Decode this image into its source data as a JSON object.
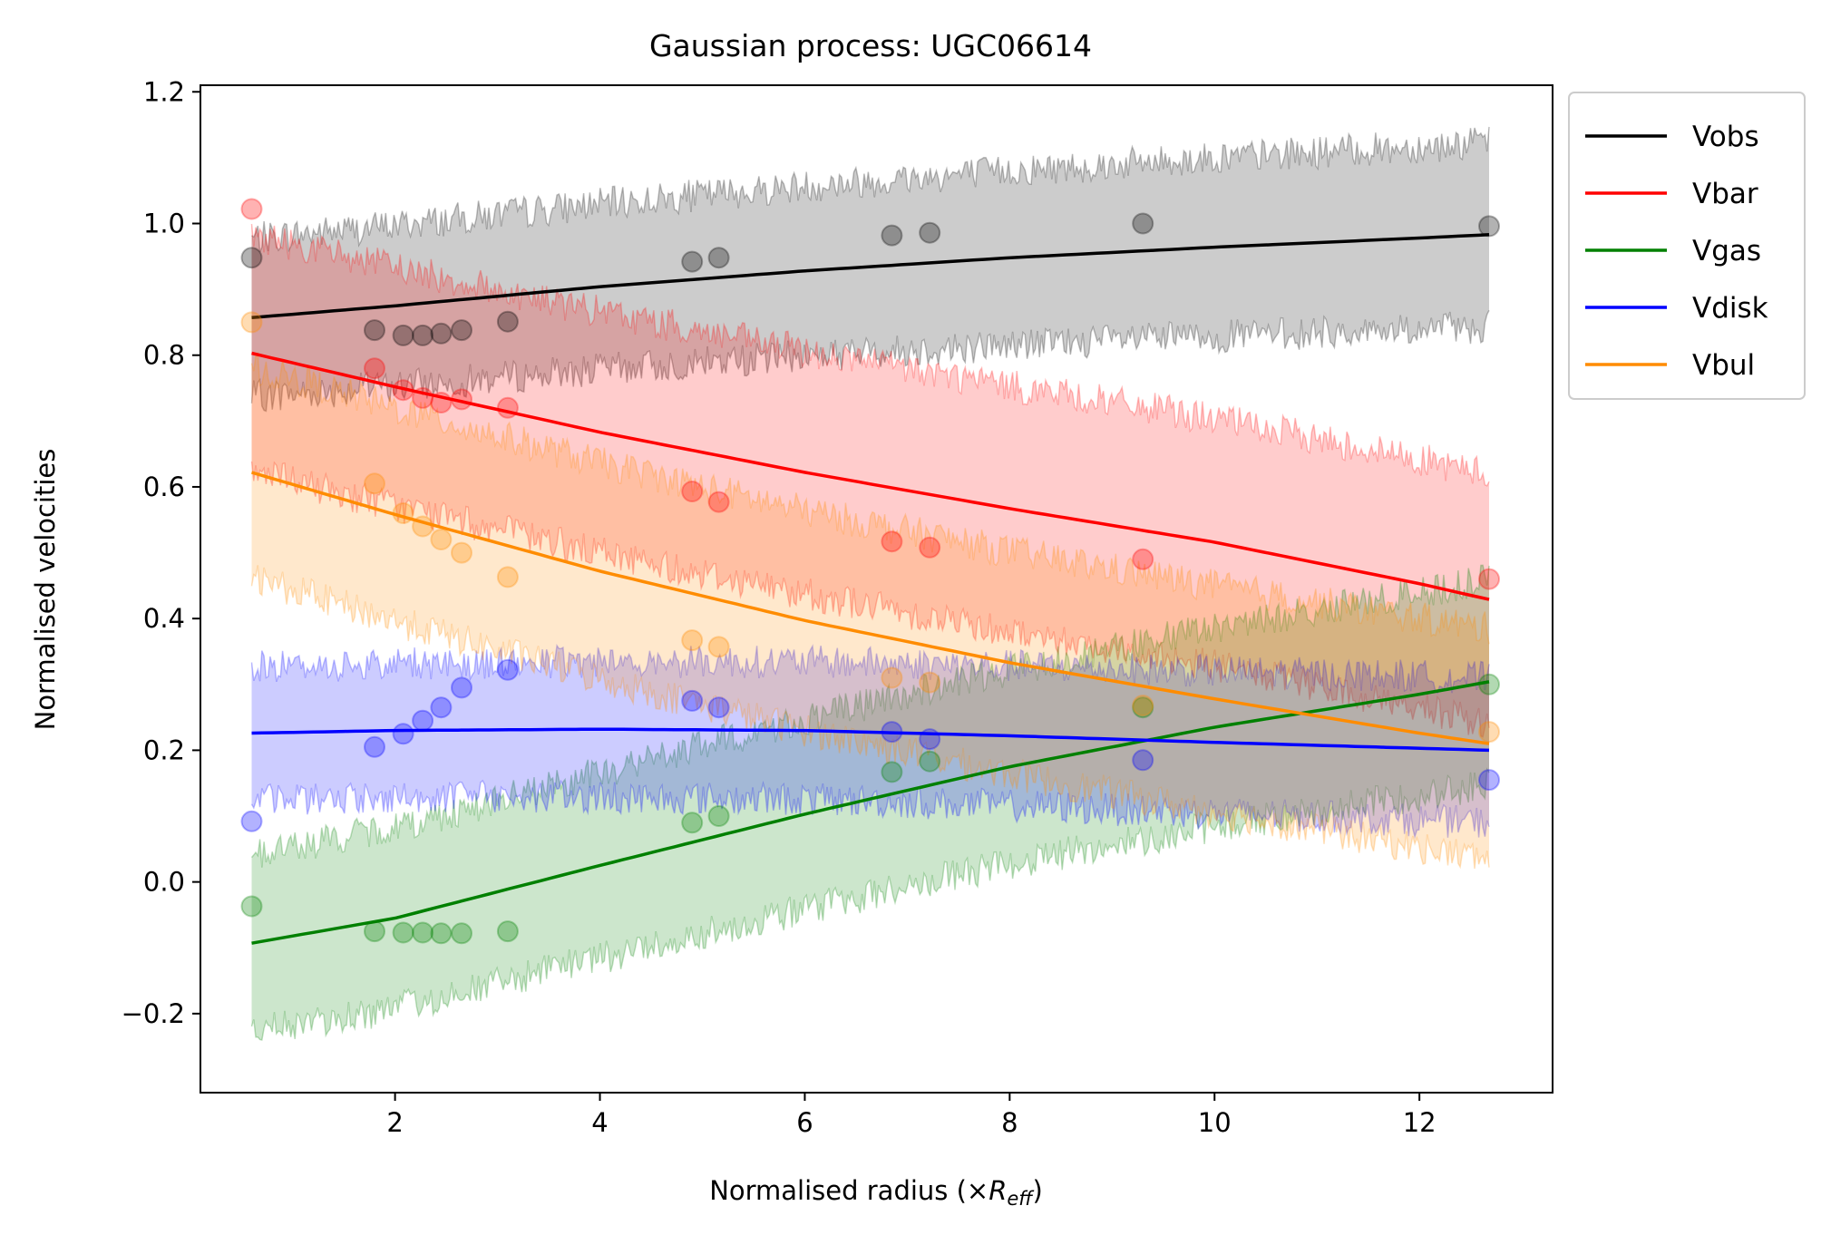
{
  "chart_data": {
    "type": "line",
    "title": "Gaussian process: UGC06614",
    "xlabel": "Normalised radius (×",
    "xlabel_sym": "R",
    "xlabel_sub": "eff",
    "xlabel_close": ")",
    "ylabel": "Normalised velocities",
    "xlim": [
      0.1,
      13.3
    ],
    "ylim": [
      -0.32,
      1.21
    ],
    "xticks": [
      2,
      4,
      6,
      8,
      10,
      12
    ],
    "xtick_labels": [
      "2",
      "4",
      "6",
      "8",
      "10",
      "12"
    ],
    "yticks": [
      -0.2,
      0.0,
      0.2,
      0.4,
      0.6,
      0.8,
      1.0,
      1.2
    ],
    "ytick_labels": [
      "−0.2",
      "0.0",
      "0.2",
      "0.4",
      "0.6",
      "0.8",
      "1.0",
      "1.2"
    ],
    "legend_position": "outside upper right",
    "x_points": [
      0.6,
      1.8,
      2.08,
      2.27,
      2.45,
      2.65,
      3.1,
      4.9,
      5.16,
      6.85,
      7.22,
      9.3,
      12.68
    ],
    "series": [
      {
        "name": "Vobs",
        "color": "#000000",
        "mean": {
          "x": [
            0.6,
            2,
            4,
            6,
            8,
            10,
            12,
            12.68
          ],
          "y": [
            0.857,
            0.875,
            0.904,
            0.928,
            0.948,
            0.964,
            0.978,
            0.983
          ]
        },
        "band_halfwidth": {
          "x": [
            0.6,
            12.68
          ],
          "y": [
            0.12,
            0.14
          ]
        },
        "points": [
          0.948,
          0.838,
          0.83,
          0.83,
          0.833,
          0.838,
          0.851,
          0.942,
          0.948,
          0.982,
          0.986,
          1.0,
          0.996
        ]
      },
      {
        "name": "Vbar",
        "color": "#ff0000",
        "mean": {
          "x": [
            0.6,
            2,
            4,
            6,
            8,
            10,
            12,
            12.68
          ],
          "y": [
            0.803,
            0.752,
            0.683,
            0.622,
            0.567,
            0.516,
            0.453,
            0.429
          ]
        },
        "band_halfwidth": {
          "x": [
            0.6,
            12.68
          ],
          "y": [
            0.18,
            0.19
          ]
        },
        "points": [
          1.022,
          0.78,
          0.747,
          0.735,
          0.728,
          0.733,
          0.72,
          0.593,
          0.577,
          0.517,
          0.508,
          0.49,
          0.46
        ]
      },
      {
        "name": "Vgas",
        "color": "#008000",
        "mean": {
          "x": [
            0.6,
            2,
            4,
            6,
            8,
            10,
            12,
            12.68
          ],
          "y": [
            -0.093,
            -0.055,
            0.025,
            0.103,
            0.175,
            0.235,
            0.285,
            0.304
          ]
        },
        "band_halfwidth": {
          "x": [
            0.6,
            12.68
          ],
          "y": [
            0.135,
            0.155
          ]
        },
        "points": [
          -0.037,
          -0.075,
          -0.077,
          -0.077,
          -0.078,
          -0.078,
          -0.075,
          0.09,
          0.1,
          0.167,
          0.183,
          0.265,
          0.3
        ]
      },
      {
        "name": "Vdisk",
        "color": "#0000ff",
        "mean": {
          "x": [
            0.6,
            2,
            4,
            6,
            8,
            10,
            12,
            12.68
          ],
          "y": [
            0.226,
            0.23,
            0.232,
            0.23,
            0.222,
            0.212,
            0.203,
            0.2
          ]
        },
        "band_halfwidth": {
          "x": [
            0.6,
            12.68
          ],
          "y": [
            0.1,
            0.11
          ]
        },
        "points": [
          0.092,
          0.205,
          0.225,
          0.245,
          0.265,
          0.295,
          0.322,
          0.275,
          0.265,
          0.228,
          0.217,
          0.185,
          0.155
        ]
      },
      {
        "name": "Vbul",
        "color": "#ff8c00",
        "mean": {
          "x": [
            0.6,
            2,
            4,
            6,
            8,
            10,
            12,
            12.68
          ],
          "y": [
            0.622,
            0.558,
            0.472,
            0.397,
            0.333,
            0.278,
            0.226,
            0.21
          ]
        },
        "band_halfwidth": {
          "x": [
            0.6,
            12.68
          ],
          "y": [
            0.16,
            0.175
          ]
        },
        "points": [
          0.85,
          0.605,
          0.56,
          0.54,
          0.52,
          0.5,
          0.463,
          0.367,
          0.357,
          0.31,
          0.303,
          0.268,
          0.228
        ]
      }
    ]
  }
}
